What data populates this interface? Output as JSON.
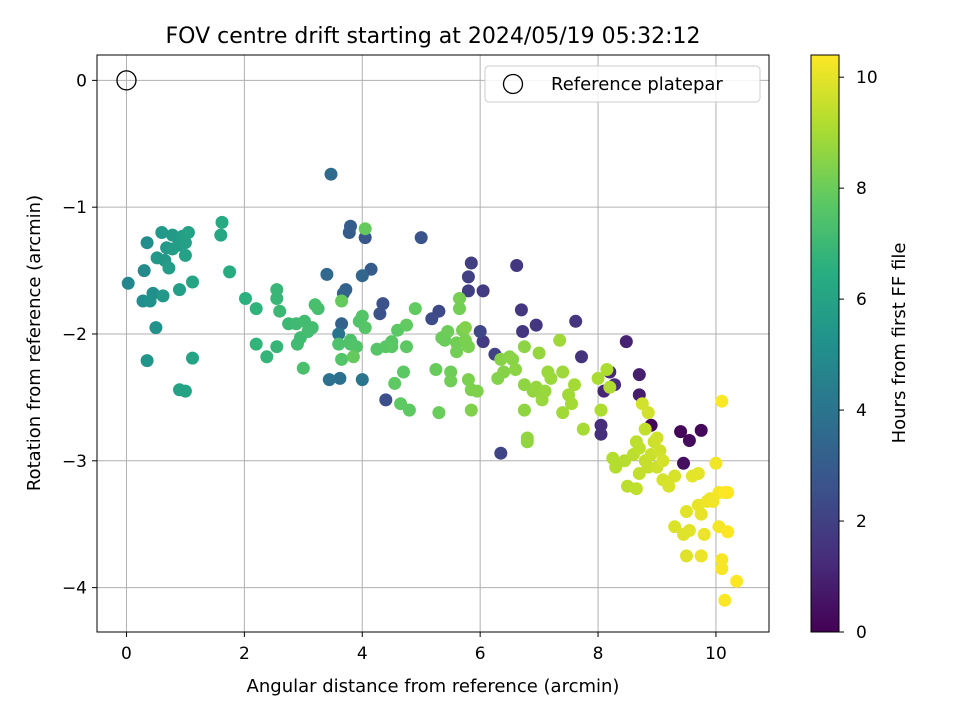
{
  "chart_data": {
    "type": "scatter",
    "title": "FOV centre drift starting at 2024/05/19 05:32:12",
    "xlabel": "Angular distance from reference (arcmin)",
    "ylabel": "Rotation from reference (arcmin)",
    "xlim": [
      -0.5,
      10.9
    ],
    "ylim": [
      -4.35,
      0.2
    ],
    "xticks": [
      0,
      2,
      4,
      6,
      8,
      10
    ],
    "yticks": [
      0,
      -1,
      -2,
      -3,
      -4
    ],
    "grid": true,
    "legend": {
      "placement": "top-right",
      "entries": [
        "Reference platepar"
      ]
    },
    "reference_point": {
      "x": 0,
      "y": 0,
      "label": "Reference platepar"
    },
    "colorbar": {
      "label": "Hours from first FF file",
      "min": 0,
      "max": 10.4,
      "ticks": [
        0,
        2,
        4,
        6,
        8,
        10
      ],
      "colormap": "viridis"
    },
    "points": [
      [
        8.9,
        -2.72,
        0.1
      ],
      [
        9.4,
        -2.77,
        0.15
      ],
      [
        9.75,
        -2.76,
        0.2
      ],
      [
        9.55,
        -2.84,
        0.3
      ],
      [
        9.45,
        -3.02,
        0.4
      ],
      [
        8.7,
        -2.48,
        0.8
      ],
      [
        8.7,
        -2.32,
        0.9
      ],
      [
        8.48,
        -2.06,
        1.0
      ],
      [
        8.1,
        -2.45,
        1.1
      ],
      [
        8.2,
        -2.3,
        1.2
      ],
      [
        8.28,
        -2.4,
        1.3
      ],
      [
        8.05,
        -2.72,
        1.35
      ],
      [
        8.05,
        -2.79,
        1.4
      ],
      [
        7.72,
        -2.18,
        1.5
      ],
      [
        7.62,
        -1.9,
        1.55
      ],
      [
        6.95,
        -1.93,
        1.6
      ],
      [
        6.72,
        -1.98,
        1.6
      ],
      [
        6.7,
        -1.81,
        1.65
      ],
      [
        6.62,
        -1.46,
        1.7
      ],
      [
        6.05,
        -1.66,
        1.8
      ],
      [
        6.05,
        -2.06,
        1.8
      ],
      [
        5.8,
        -1.66,
        1.9
      ],
      [
        5.85,
        -1.44,
        1.9
      ],
      [
        5.8,
        -1.55,
        2.0
      ],
      [
        6.25,
        -2.16,
        2.0
      ],
      [
        6.35,
        -2.94,
        2.1
      ],
      [
        6.0,
        -1.98,
        2.2
      ],
      [
        5.3,
        -1.82,
        2.3
      ],
      [
        5.18,
        -1.88,
        2.4
      ],
      [
        4.4,
        -2.52,
        2.5
      ],
      [
        4.35,
        -1.76,
        2.6
      ],
      [
        4.3,
        -1.84,
        2.6
      ],
      [
        5.0,
        -1.24,
        2.7
      ],
      [
        4.05,
        -1.24,
        2.8
      ],
      [
        3.78,
        -1.2,
        3.0
      ],
      [
        3.8,
        -1.15,
        3.0
      ],
      [
        4.15,
        -1.49,
        3.0
      ],
      [
        3.72,
        -1.65,
        3.2
      ],
      [
        3.68,
        -1.68,
        3.3
      ],
      [
        3.65,
        -1.92,
        3.3
      ],
      [
        4.0,
        -1.54,
        3.4
      ],
      [
        3.4,
        -1.53,
        3.5
      ],
      [
        3.47,
        -0.74,
        3.6
      ],
      [
        3.62,
        -2.35,
        3.8
      ],
      [
        3.44,
        -2.36,
        3.9
      ],
      [
        4.0,
        -2.36,
        4.0
      ],
      [
        3.6,
        -2.0,
        4.0
      ],
      [
        0.03,
        -1.6,
        4.8
      ],
      [
        0.3,
        -1.5,
        4.9
      ],
      [
        0.35,
        -1.28,
        5.0
      ],
      [
        0.28,
        -1.74,
        5.0
      ],
      [
        0.45,
        -1.68,
        5.1
      ],
      [
        0.4,
        -1.74,
        5.2
      ],
      [
        0.5,
        -1.95,
        5.3
      ],
      [
        0.35,
        -2.21,
        5.4
      ],
      [
        0.52,
        -1.4,
        5.5
      ],
      [
        0.65,
        -1.42,
        5.5
      ],
      [
        0.62,
        -1.7,
        5.5
      ],
      [
        0.6,
        -1.2,
        5.55
      ],
      [
        0.68,
        -1.32,
        5.6
      ],
      [
        0.78,
        -1.22,
        5.6
      ],
      [
        0.72,
        -1.48,
        5.7
      ],
      [
        0.78,
        -1.33,
        5.7
      ],
      [
        0.88,
        -1.3,
        5.75
      ],
      [
        0.9,
        -1.65,
        5.8
      ],
      [
        0.95,
        -1.23,
        5.8
      ],
      [
        1.0,
        -1.28,
        5.85
      ],
      [
        1.05,
        -1.2,
        5.9
      ],
      [
        1.0,
        -1.38,
        5.9
      ],
      [
        0.9,
        -2.44,
        5.95
      ],
      [
        1.0,
        -2.45,
        6.0
      ],
      [
        1.12,
        -2.19,
        6.0
      ],
      [
        1.12,
        -1.59,
        6.1
      ],
      [
        1.6,
        -1.22,
        6.2
      ],
      [
        1.62,
        -1.12,
        6.3
      ],
      [
        1.75,
        -1.51,
        6.4
      ],
      [
        2.02,
        -1.72,
        6.6
      ],
      [
        2.2,
        -1.8,
        6.7
      ],
      [
        2.2,
        -2.08,
        6.75
      ],
      [
        2.38,
        -2.18,
        6.8
      ],
      [
        2.55,
        -2.1,
        6.85
      ],
      [
        2.55,
        -1.72,
        6.9
      ],
      [
        2.55,
        -1.65,
        6.9
      ],
      [
        2.6,
        -1.82,
        7.0
      ],
      [
        2.75,
        -1.92,
        7.0
      ],
      [
        2.88,
        -1.92,
        7.05
      ],
      [
        2.9,
        -2.08,
        7.1
      ],
      [
        2.95,
        -2.03,
        7.1
      ],
      [
        3.02,
        -1.9,
        7.15
      ],
      [
        3.08,
        -1.98,
        7.2
      ],
      [
        3.15,
        -1.95,
        7.2
      ],
      [
        3.25,
        -1.8,
        7.25
      ],
      [
        3.2,
        -1.77,
        7.3
      ],
      [
        3.0,
        -2.27,
        7.35
      ],
      [
        3.6,
        -2.08,
        7.4
      ],
      [
        3.8,
        -2.05,
        7.4
      ],
      [
        3.8,
        -2.08,
        7.45
      ],
      [
        3.9,
        -2.1,
        7.5
      ],
      [
        3.95,
        -1.9,
        7.5
      ],
      [
        3.65,
        -2.2,
        7.55
      ],
      [
        4.0,
        -1.86,
        7.55
      ],
      [
        4.05,
        -1.95,
        7.6
      ],
      [
        4.25,
        -2.12,
        7.6
      ],
      [
        4.4,
        -2.1,
        7.65
      ],
      [
        4.5,
        -2.06,
        7.65
      ],
      [
        4.5,
        -2.1,
        7.7
      ],
      [
        4.6,
        -1.97,
        7.7
      ],
      [
        4.75,
        -2.1,
        7.75
      ],
      [
        4.7,
        -2.3,
        7.75
      ],
      [
        4.55,
        -2.39,
        7.8
      ],
      [
        4.65,
        -2.55,
        7.8
      ],
      [
        4.8,
        -2.6,
        7.8
      ],
      [
        4.9,
        -1.8,
        7.85
      ],
      [
        4.75,
        -1.93,
        7.85
      ],
      [
        3.85,
        -2.18,
        7.9
      ],
      [
        4.05,
        -1.17,
        7.9
      ],
      [
        3.65,
        -1.74,
        7.9
      ],
      [
        5.25,
        -2.28,
        7.95
      ],
      [
        5.3,
        -2.62,
        8.0
      ],
      [
        5.35,
        -2.03,
        8.0
      ],
      [
        5.4,
        -2.05,
        8.0
      ],
      [
        5.45,
        -1.98,
        8.05
      ],
      [
        5.5,
        -2.3,
        8.05
      ],
      [
        5.5,
        -2.37,
        8.1
      ],
      [
        5.6,
        -2.07,
        8.1
      ],
      [
        5.6,
        -2.14,
        8.15
      ],
      [
        5.65,
        -1.8,
        8.15
      ],
      [
        5.65,
        -1.72,
        8.2
      ],
      [
        5.7,
        -1.97,
        8.2
      ],
      [
        5.75,
        -2.05,
        8.25
      ],
      [
        5.8,
        -2.1,
        8.25
      ],
      [
        5.8,
        -2.36,
        8.3
      ],
      [
        5.85,
        -2.44,
        8.3
      ],
      [
        5.85,
        -2.6,
        8.35
      ],
      [
        5.95,
        -2.45,
        8.35
      ],
      [
        5.75,
        -1.95,
        8.4
      ],
      [
        6.3,
        -2.35,
        8.4
      ],
      [
        6.35,
        -2.2,
        8.45
      ],
      [
        6.4,
        -2.3,
        8.45
      ],
      [
        6.5,
        -2.18,
        8.5
      ],
      [
        6.55,
        -2.2,
        8.5
      ],
      [
        6.6,
        -2.28,
        8.55
      ],
      [
        6.75,
        -2.1,
        8.55
      ],
      [
        6.75,
        -2.4,
        8.6
      ],
      [
        6.75,
        -2.6,
        8.6
      ],
      [
        6.8,
        -2.85,
        8.6
      ],
      [
        6.8,
        -2.82,
        8.65
      ],
      [
        6.9,
        -2.45,
        8.65
      ],
      [
        6.95,
        -2.42,
        8.7
      ],
      [
        7.0,
        -2.15,
        8.7
      ],
      [
        7.05,
        -2.52,
        8.75
      ],
      [
        7.1,
        -2.45,
        8.75
      ],
      [
        7.15,
        -2.3,
        8.8
      ],
      [
        7.2,
        -2.35,
        8.8
      ],
      [
        7.35,
        -2.05,
        8.85
      ],
      [
        7.4,
        -2.3,
        8.85
      ],
      [
        7.4,
        -2.62,
        8.9
      ],
      [
        7.5,
        -2.48,
        8.9
      ],
      [
        7.55,
        -2.55,
        8.95
      ],
      [
        7.6,
        -2.4,
        8.95
      ],
      [
        7.75,
        -2.75,
        9.0
      ],
      [
        8.0,
        -2.35,
        9.05
      ],
      [
        8.05,
        -2.6,
        9.1
      ],
      [
        8.15,
        -2.28,
        9.1
      ],
      [
        8.2,
        -2.42,
        9.15
      ],
      [
        8.25,
        -2.98,
        9.2
      ],
      [
        8.3,
        -3.05,
        9.2
      ],
      [
        8.45,
        -3.0,
        9.25
      ],
      [
        8.5,
        -3.2,
        9.3
      ],
      [
        8.6,
        -2.95,
        9.35
      ],
      [
        8.65,
        -2.85,
        9.35
      ],
      [
        8.65,
        -3.22,
        9.4
      ],
      [
        8.7,
        -2.9,
        9.4
      ],
      [
        8.7,
        -3.1,
        9.45
      ],
      [
        8.8,
        -2.75,
        9.45
      ],
      [
        8.8,
        -3.0,
        9.5
      ],
      [
        8.85,
        -3.05,
        9.5
      ],
      [
        8.9,
        -2.95,
        9.55
      ],
      [
        8.95,
        -2.85,
        9.6
      ],
      [
        9.0,
        -3.05,
        9.6
      ],
      [
        9.0,
        -2.82,
        9.65
      ],
      [
        9.05,
        -2.92,
        9.65
      ],
      [
        8.85,
        -2.62,
        9.7
      ],
      [
        8.75,
        -2.55,
        9.7
      ],
      [
        9.1,
        -3.0,
        9.75
      ],
      [
        9.1,
        -3.15,
        9.75
      ],
      [
        9.2,
        -3.2,
        9.8
      ],
      [
        9.3,
        -3.12,
        9.8
      ],
      [
        9.3,
        -3.52,
        9.85
      ],
      [
        9.45,
        -3.58,
        9.9
      ],
      [
        9.5,
        -3.75,
        9.9
      ],
      [
        9.5,
        -3.4,
        9.95
      ],
      [
        9.55,
        -3.55,
        9.95
      ],
      [
        9.6,
        -3.12,
        10.0
      ],
      [
        9.7,
        -3.1,
        10.0
      ],
      [
        9.75,
        -3.42,
        10.05
      ],
      [
        9.7,
        -3.35,
        10.05
      ],
      [
        9.75,
        -3.75,
        10.1
      ],
      [
        9.8,
        -3.58,
        10.1
      ],
      [
        9.85,
        -3.32,
        10.15
      ],
      [
        9.9,
        -3.3,
        10.15
      ],
      [
        9.95,
        -3.32,
        10.2
      ],
      [
        10.0,
        -3.02,
        10.2
      ],
      [
        10.05,
        -3.25,
        10.25
      ],
      [
        10.05,
        -3.52,
        10.25
      ],
      [
        10.1,
        -3.78,
        10.3
      ],
      [
        10.1,
        -3.85,
        10.3
      ],
      [
        10.1,
        -2.53,
        10.35
      ],
      [
        10.15,
        -3.25,
        10.35
      ],
      [
        10.15,
        -4.1,
        10.35
      ],
      [
        10.2,
        -3.56,
        10.4
      ],
      [
        10.2,
        -3.25,
        10.4
      ],
      [
        10.35,
        -3.95,
        10.4
      ]
    ]
  }
}
